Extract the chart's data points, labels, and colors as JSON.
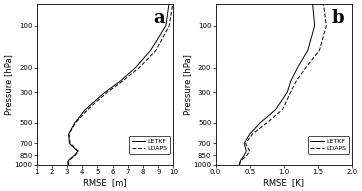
{
  "pressure_levels": [
    1000,
    950,
    925,
    850,
    800,
    700,
    600,
    500,
    400,
    300,
    250,
    200,
    150,
    100,
    70
  ],
  "panel_a": {
    "label": "a",
    "xlabel": "RMSE  [m]",
    "xlim": [
      1,
      10
    ],
    "xticks": [
      1,
      2,
      3,
      4,
      5,
      6,
      7,
      8,
      9,
      10
    ],
    "letkf": [
      3.05,
      3.05,
      3.1,
      3.5,
      3.7,
      3.15,
      3.1,
      3.5,
      4.2,
      5.5,
      6.5,
      7.5,
      8.5,
      9.5,
      9.7
    ],
    "ldaps": [
      3.1,
      3.1,
      3.15,
      3.55,
      3.75,
      3.2,
      3.12,
      3.55,
      4.35,
      5.65,
      6.65,
      7.75,
      8.85,
      9.72,
      9.95
    ]
  },
  "panel_b": {
    "label": "b",
    "xlabel": "RMSE  [K]",
    "xlim": [
      0,
      2
    ],
    "xticks": [
      0,
      0.5,
      1.0,
      1.5,
      2.0
    ],
    "letkf": [
      0.35,
      0.36,
      0.37,
      0.42,
      0.45,
      0.42,
      0.5,
      0.65,
      0.88,
      1.05,
      1.1,
      1.2,
      1.35,
      1.45,
      1.42
    ],
    "ldaps": [
      0.35,
      0.36,
      0.38,
      0.46,
      0.5,
      0.44,
      0.54,
      0.75,
      0.98,
      1.1,
      1.18,
      1.32,
      1.52,
      1.62,
      1.58
    ]
  },
  "pressure_ticks": [
    100,
    200,
    300,
    500,
    700,
    850,
    1000
  ],
  "ylabel": "Pressure [hPa]",
  "ylim_top": 70,
  "ylim_bottom": 1000,
  "line_color": "#000000",
  "legend_letkf": "LETKF",
  "legend_ldaps": "LDAPS",
  "bg_color": "#ffffff"
}
